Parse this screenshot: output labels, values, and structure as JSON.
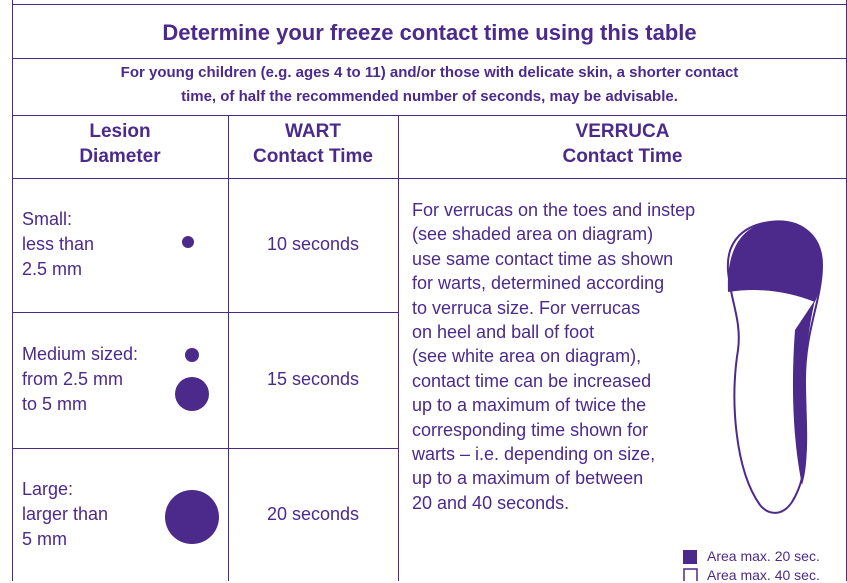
{
  "header": {
    "title": "Determine your freeze contact time using this table",
    "note": [
      "For young children (e.g. ages 4 to 11) and/or those with delicate skin, a shorter contact",
      "time, of half the recommended number of seconds, may be advisable."
    ]
  },
  "table": {
    "columns": [
      [
        "Lesion",
        "Diameter"
      ],
      [
        "WART",
        "Contact Time"
      ],
      [
        "VERRUCA",
        "Contact Time"
      ]
    ],
    "rows": [
      {
        "label": [
          "Small:",
          "less than",
          "2.5 mm"
        ],
        "wart": "10 seconds"
      },
      {
        "label": [
          "Medium sized:",
          "from 2.5 mm",
          "to 5 mm"
        ],
        "wart": "15 seconds"
      },
      {
        "label": [
          "Large:",
          "larger than",
          "5 mm"
        ],
        "wart": "20 seconds"
      }
    ],
    "verruca": [
      "For verrucas on the toes and instep",
      "(see shaded area on diagram)",
      "use same contact time as shown",
      "for warts, determined according",
      "to verruca size. For verrucas",
      "on heel and ball of foot",
      "(see white area on diagram),",
      "contact time can be increased",
      "up to a maximum of twice the",
      "corresponding time shown for",
      "warts – i.e. depending on size,",
      "up to a maximum of between",
      "20 and 40 seconds."
    ]
  },
  "legend": [
    "Area max. 20 sec.",
    "Area max. 40 sec."
  ]
}
